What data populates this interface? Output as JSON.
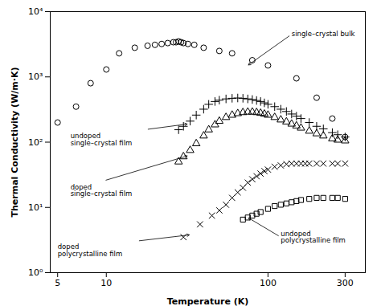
{
  "chart_data": {
    "type": "scatter",
    "xlabel": "Temperature (K)",
    "ylabel": "Thermal Conductivity (W/m·K)",
    "log": true,
    "grid": false,
    "xlim": [
      4.5,
      400
    ],
    "ylim": [
      1,
      10000
    ],
    "xticks": [
      5,
      10,
      100,
      300
    ],
    "yticks": [
      {
        "value": 1,
        "label": "10⁰"
      },
      {
        "value": 10,
        "label": "10¹"
      },
      {
        "value": 100,
        "label": "10²"
      },
      {
        "value": 1000,
        "label": "10³"
      },
      {
        "value": 10000,
        "label": "10⁴"
      }
    ],
    "series": [
      {
        "marker": "circle",
        "color": "black",
        "x": [
          5,
          6.5,
          8,
          10,
          12,
          15,
          18,
          20,
          22,
          24,
          26,
          27,
          28,
          29,
          30,
          32,
          35,
          40,
          50,
          60,
          80,
          100,
          150,
          200,
          250,
          300
        ],
        "values": [
          200,
          350,
          800,
          1300,
          2300,
          2800,
          3000,
          3100,
          3200,
          3300,
          3400,
          3400,
          3500,
          3400,
          3300,
          3200,
          3100,
          2800,
          2500,
          2300,
          1800,
          1500,
          950,
          480,
          230,
          120
        ]
      },
      {
        "marker": "plus",
        "color": "black",
        "x": [
          28,
          30,
          33,
          36,
          40,
          43,
          47,
          50,
          55,
          60,
          65,
          70,
          75,
          80,
          85,
          90,
          95,
          100,
          110,
          120,
          130,
          140,
          150,
          160,
          180,
          200,
          220,
          250,
          270,
          300
        ],
        "values": [
          155,
          175,
          210,
          260,
          320,
          380,
          420,
          440,
          460,
          470,
          475,
          470,
          460,
          450,
          435,
          420,
          400,
          380,
          350,
          320,
          295,
          270,
          250,
          230,
          200,
          175,
          160,
          140,
          130,
          120
        ]
      },
      {
        "marker": "triangle",
        "color": "black",
        "x": [
          28,
          30,
          33,
          36,
          40,
          43,
          47,
          50,
          55,
          60,
          65,
          70,
          75,
          80,
          85,
          90,
          95,
          100,
          110,
          120,
          130,
          140,
          150,
          160,
          180,
          200,
          220,
          250,
          270,
          300
        ],
        "values": [
          50,
          60,
          75,
          95,
          125,
          155,
          185,
          210,
          240,
          260,
          275,
          285,
          290,
          290,
          285,
          278,
          270,
          260,
          240,
          220,
          205,
          190,
          178,
          165,
          148,
          135,
          125,
          113,
          108,
          105
        ]
      },
      {
        "marker": "x",
        "color": "black",
        "x": [
          30,
          38,
          45,
          50,
          55,
          60,
          65,
          70,
          75,
          80,
          85,
          90,
          95,
          100,
          110,
          120,
          130,
          140,
          150,
          160,
          170,
          180,
          200,
          220,
          250,
          270,
          300
        ],
        "values": [
          3.5,
          5.5,
          7.5,
          9,
          11,
          14,
          17,
          20,
          24,
          27,
          30,
          33,
          36,
          38,
          42,
          44,
          46,
          47,
          47,
          47,
          47,
          47,
          47,
          47,
          47,
          47,
          47
        ]
      },
      {
        "marker": "square",
        "color": "black",
        "x": [
          70,
          75,
          80,
          85,
          90,
          100,
          110,
          120,
          130,
          140,
          150,
          160,
          180,
          200,
          220,
          250,
          270,
          300
        ],
        "values": [
          6.5,
          7,
          7.5,
          8,
          8.5,
          9.5,
          10.5,
          11,
          11.5,
          12,
          12.5,
          13,
          13.5,
          14,
          14,
          14,
          14,
          13.5
        ]
      }
    ],
    "annotations": [
      {
        "text": "single–crystal bulk",
        "xy": [
          75,
          1500
        ],
        "xytext": [
          140,
          4500
        ]
      },
      {
        "text": "undoped\nsingle–crystal film",
        "xy": [
          32,
          190
        ],
        "xytext": [
          6,
          110
        ]
      },
      {
        "text": "doped\nsingle–crystal film",
        "xy": [
          32,
          62
        ],
        "xytext": [
          6,
          18
        ]
      },
      {
        "text": "doped\npolycrystalline film",
        "xy": [
          33,
          3.8
        ],
        "xytext": [
          5,
          2.2
        ]
      },
      {
        "text": "undoped\npolycrystalline film",
        "xy": [
          75,
          7
        ],
        "xytext": [
          120,
          3.5
        ]
      }
    ]
  }
}
